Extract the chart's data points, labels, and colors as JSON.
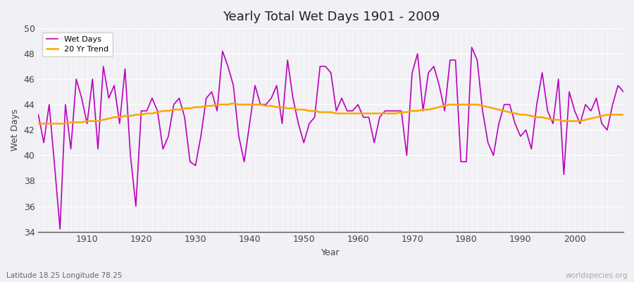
{
  "title": "Yearly Total Wet Days 1901 - 2009",
  "xlabel": "Year",
  "ylabel": "Wet Days",
  "lat_lon_label": "Latitude 18.25 Longitude 78.25",
  "watermark": "worldspecies.org",
  "start_year": 1901,
  "end_year": 2009,
  "ylim": [
    34,
    50
  ],
  "yticks": [
    34,
    36,
    38,
    40,
    42,
    44,
    46,
    48,
    50
  ],
  "wet_days_color": "#bb00bb",
  "trend_color": "#FFA500",
  "bg_color": "#f0f0f5",
  "wet_days": [
    43.2,
    41.0,
    44.0,
    39.2,
    34.2,
    44.0,
    40.5,
    46.0,
    44.5,
    42.5,
    46.0,
    40.5,
    47.0,
    44.5,
    45.5,
    42.5,
    46.8,
    40.0,
    36.0,
    43.5,
    43.5,
    44.5,
    43.5,
    40.5,
    41.5,
    44.0,
    44.5,
    43.0,
    39.5,
    39.2,
    41.5,
    44.5,
    45.0,
    43.5,
    48.2,
    47.0,
    45.5,
    41.5,
    39.5,
    42.5,
    45.5,
    44.0,
    44.0,
    44.5,
    45.5,
    42.5,
    47.5,
    44.5,
    42.5,
    41.0,
    42.5,
    43.0,
    47.0,
    47.0,
    46.5,
    43.5,
    44.5,
    43.5,
    43.5,
    44.0,
    43.0,
    43.0,
    41.0,
    43.0,
    43.5,
    43.5,
    43.5,
    43.5,
    40.0,
    46.5,
    48.0,
    43.5,
    46.5,
    47.0,
    45.5,
    43.5,
    47.5,
    47.5,
    39.5,
    39.5,
    48.5,
    47.5,
    43.5,
    41.0,
    40.0,
    42.5,
    44.0,
    44.0,
    42.5,
    41.5,
    42.0,
    40.5,
    44.0,
    46.5,
    43.5,
    42.5,
    46.0,
    38.5,
    45.0,
    43.5,
    42.5,
    44.0,
    43.5,
    44.5,
    42.5,
    42.0,
    44.0,
    45.5,
    45.0
  ],
  "trend_20yr": [
    42.5,
    42.5,
    42.5,
    42.5,
    42.5,
    42.5,
    42.6,
    42.6,
    42.6,
    42.7,
    42.7,
    42.7,
    42.8,
    42.9,
    43.0,
    43.0,
    43.1,
    43.1,
    43.2,
    43.2,
    43.3,
    43.3,
    43.4,
    43.5,
    43.5,
    43.6,
    43.6,
    43.7,
    43.7,
    43.8,
    43.8,
    43.9,
    43.9,
    44.0,
    44.0,
    44.0,
    44.1,
    44.0,
    44.0,
    44.0,
    44.0,
    44.0,
    43.9,
    43.9,
    43.8,
    43.8,
    43.7,
    43.7,
    43.6,
    43.6,
    43.5,
    43.5,
    43.4,
    43.4,
    43.4,
    43.3,
    43.3,
    43.3,
    43.3,
    43.3,
    43.3,
    43.3,
    43.3,
    43.3,
    43.3,
    43.3,
    43.3,
    43.4,
    43.4,
    43.5,
    43.5,
    43.6,
    43.6,
    43.7,
    43.8,
    43.9,
    44.0,
    44.0,
    44.0,
    44.0,
    44.0,
    44.0,
    43.9,
    43.8,
    43.7,
    43.6,
    43.5,
    43.4,
    43.3,
    43.2,
    43.2,
    43.1,
    43.0,
    43.0,
    42.9,
    42.8,
    42.8,
    42.7,
    42.7,
    42.7,
    42.7,
    42.8,
    42.9,
    43.0,
    43.1,
    43.2,
    43.2,
    43.2,
    43.2
  ]
}
